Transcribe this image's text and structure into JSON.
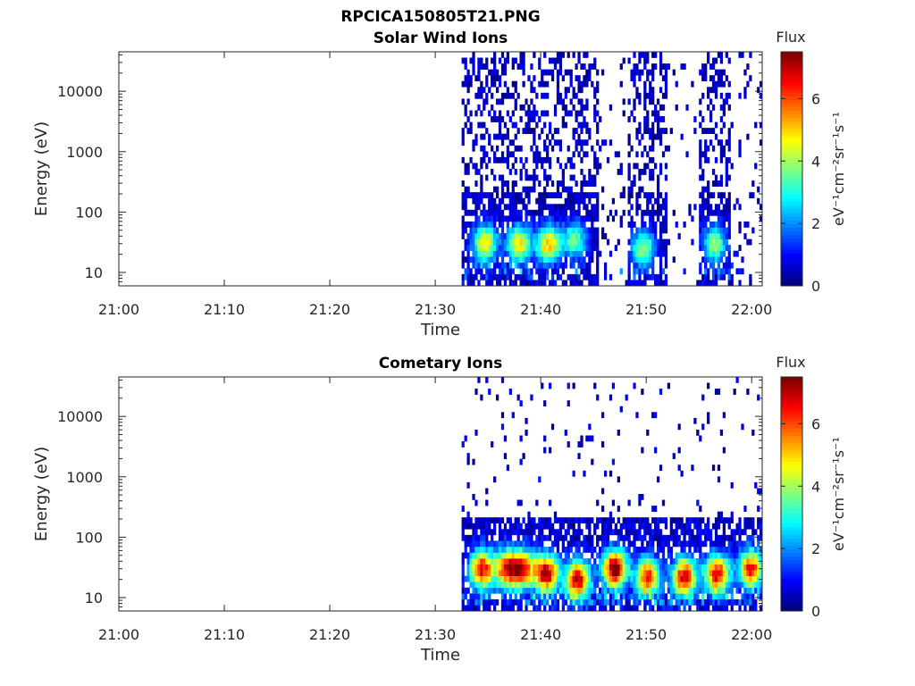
{
  "figure_title": "RPCICA150805T21.PNG",
  "chart_data": [
    {
      "type": "heatmap",
      "title": "Solar Wind Ions",
      "xlabel": "Time",
      "ylabel": "Energy (eV)",
      "x_tick_labels": [
        "21:00",
        "21:10",
        "21:20",
        "21:30",
        "21:40",
        "21:50",
        "22:00"
      ],
      "x_tick_minutes": [
        0,
        10,
        20,
        30,
        40,
        50,
        60
      ],
      "xlim_minutes": [
        0,
        61
      ],
      "y_scale": "log",
      "y_tick_labels": [
        "10",
        "100",
        "1000",
        "10000"
      ],
      "y_tick_values": [
        10,
        100,
        1000,
        10000
      ],
      "ylim": [
        6,
        45000
      ],
      "colorbar": {
        "label": "Flux",
        "unit": "eV⁻¹cm⁻²sr⁻¹s⁻¹",
        "ticks": [
          "0",
          "2",
          "4",
          "6"
        ],
        "range": [
          0,
          7.5
        ]
      },
      "data_intervals_minutes": [
        [
          32.3,
          45.3
        ],
        [
          48.2,
          51.8
        ],
        [
          54.8,
          58.0
        ]
      ],
      "scatter_intervals_minutes": [
        [
          45.3,
          48.2
        ],
        [
          51.8,
          54.8
        ],
        [
          58.0,
          61.0
        ]
      ],
      "peak_events": [
        {
          "t": 34.6,
          "energy_eV": 30,
          "flux": 4.6
        },
        {
          "t": 37.8,
          "energy_eV": 30,
          "flux": 4.4
        },
        {
          "t": 40.6,
          "energy_eV": 30,
          "flux": 4.8
        },
        {
          "t": 43.1,
          "energy_eV": 35,
          "flux": 3.2
        },
        {
          "t": 49.6,
          "energy_eV": 25,
          "flux": 3.6
        },
        {
          "t": 56.4,
          "energy_eV": 30,
          "flux": 3.4
        }
      ],
      "background_flux": 0.4
    },
    {
      "type": "heatmap",
      "title": "Cometary Ions",
      "xlabel": "Time",
      "ylabel": "Energy (eV)",
      "x_tick_labels": [
        "21:00",
        "21:10",
        "21:20",
        "21:30",
        "21:40",
        "21:50",
        "22:00"
      ],
      "x_tick_minutes": [
        0,
        10,
        20,
        30,
        40,
        50,
        60
      ],
      "xlim_minutes": [
        0,
        61
      ],
      "y_scale": "log",
      "y_tick_labels": [
        "10",
        "100",
        "1000",
        "10000"
      ],
      "y_tick_values": [
        10,
        100,
        1000,
        10000
      ],
      "ylim": [
        6,
        45000
      ],
      "colorbar": {
        "label": "Flux",
        "unit": "eV⁻¹cm⁻²sr⁻¹s⁻¹",
        "ticks": [
          "0",
          "2",
          "4",
          "6"
        ],
        "range": [
          0,
          7.5
        ]
      },
      "data_intervals_minutes": [
        [
          32.3,
          61.0
        ]
      ],
      "scatter_intervals_minutes": [],
      "peak_events": [
        {
          "t": 34.3,
          "energy_eV": 30,
          "flux": 6.2
        },
        {
          "t": 36.6,
          "energy_eV": 30,
          "flux": 5.2
        },
        {
          "t": 38.1,
          "energy_eV": 30,
          "flux": 6.0
        },
        {
          "t": 40.4,
          "energy_eV": 25,
          "flux": 6.8
        },
        {
          "t": 43.4,
          "energy_eV": 20,
          "flux": 6.6
        },
        {
          "t": 46.9,
          "energy_eV": 30,
          "flux": 7.3
        },
        {
          "t": 50.0,
          "energy_eV": 22,
          "flux": 5.8
        },
        {
          "t": 53.5,
          "energy_eV": 22,
          "flux": 6.6
        },
        {
          "t": 56.6,
          "energy_eV": 25,
          "flux": 6.4
        },
        {
          "t": 59.8,
          "energy_eV": 30,
          "flux": 6.0
        }
      ],
      "background_flux": 0.5
    }
  ]
}
